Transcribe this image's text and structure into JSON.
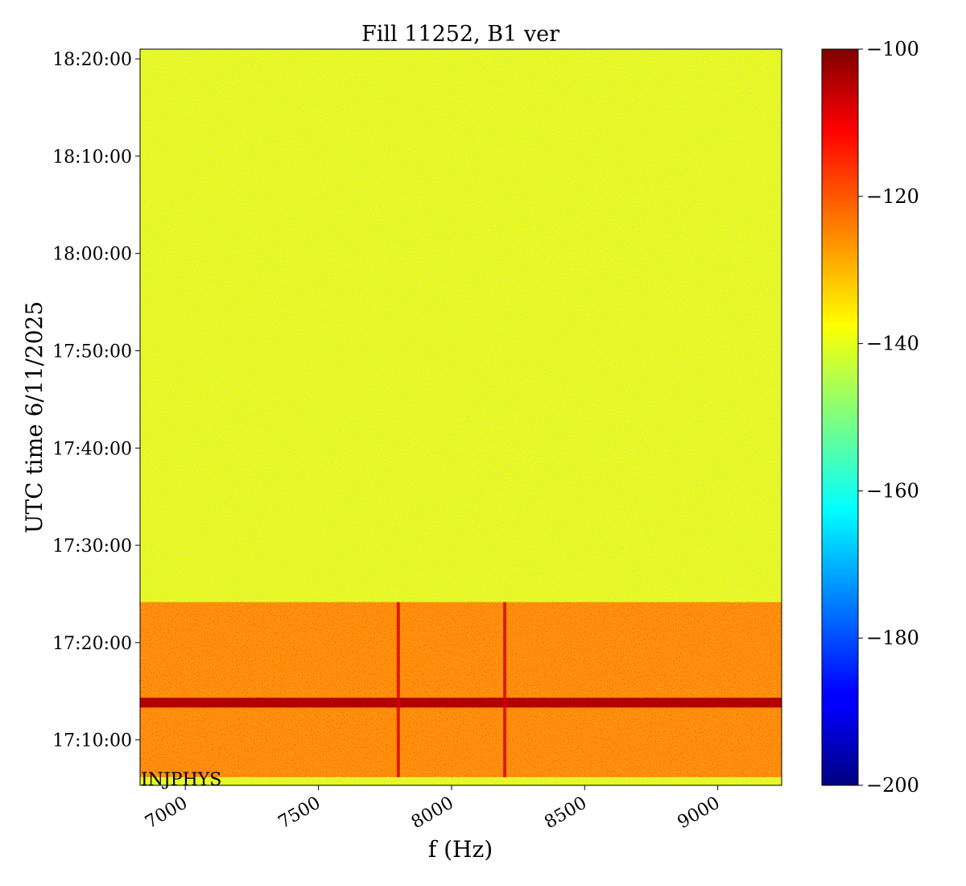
{
  "chart_data": {
    "type": "heatmap",
    "title": "Fill 11252, B1 ver",
    "xlabel": "f (Hz)",
    "ylabel": "UTC time 6/11/2025",
    "xlim": [
      6830,
      9240
    ],
    "x_ticks": [
      7000,
      7500,
      8000,
      8500,
      9000
    ],
    "x_tick_labels": [
      "7000",
      "7500",
      "8000",
      "8500",
      "9000"
    ],
    "ylim": [
      "17:05:20",
      "18:21:00"
    ],
    "y_ticks": [
      "17:10:00",
      "17:20:00",
      "17:30:00",
      "17:40:00",
      "17:50:00",
      "18:00:00",
      "18:10:00",
      "18:20:00"
    ],
    "colorbar": {
      "colormap": "jet",
      "range": [
        -200,
        -100
      ],
      "ticks": [
        -100,
        -120,
        -140,
        -160,
        -180,
        -200
      ],
      "tick_labels": [
        "−100",
        "−120",
        "−140",
        "−160",
        "−180",
        "−200"
      ]
    },
    "regions": [
      {
        "t_start": "17:24:10",
        "t_end": "18:21:00",
        "level": -137,
        "description": "quiet"
      },
      {
        "t_start": "17:06:10",
        "t_end": "17:24:10",
        "level": -125,
        "description": "elevated"
      },
      {
        "t_start": "17:13:20",
        "t_end": "17:14:20",
        "level": -105,
        "description": "band"
      },
      {
        "t_start": "17:05:20",
        "t_end": "17:06:10",
        "level": -137,
        "description": "quiet"
      }
    ],
    "vertical_lines": [
      {
        "f": 7800,
        "level": -108
      },
      {
        "f": 8200,
        "level": -108
      }
    ],
    "annotation": "INJPHYS"
  }
}
